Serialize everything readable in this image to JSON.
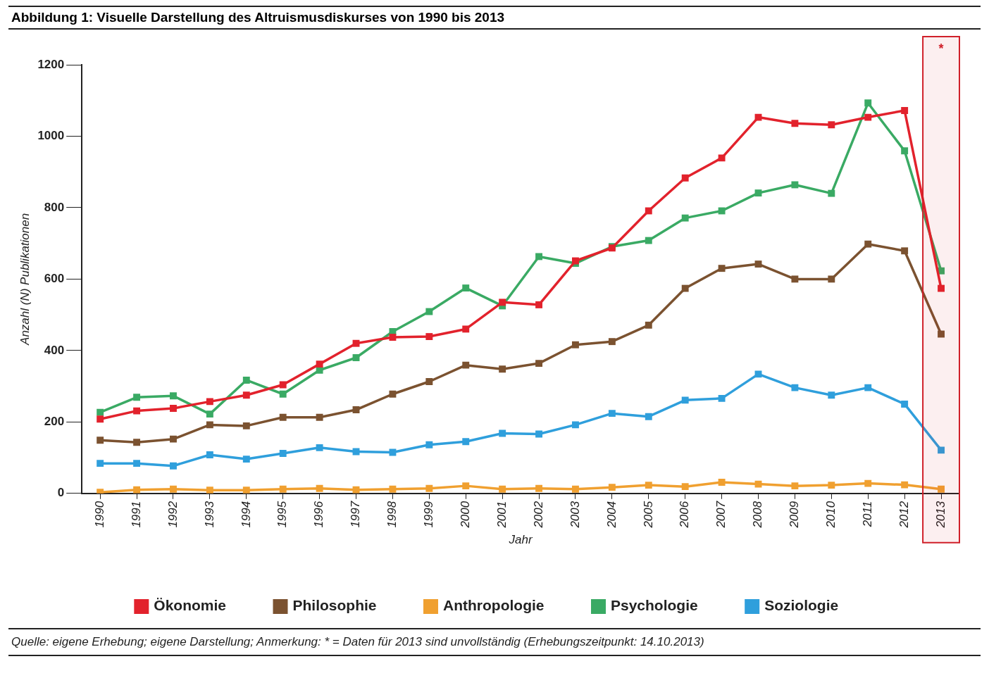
{
  "chart_data": {
    "type": "line",
    "title": "Abbildung 1: Visuelle Darstellung des Altruismusdiskurses von 1990 bis 2013",
    "xlabel": "Jahr",
    "ylabel": "Anzahl (N) Publikationen",
    "categories": [
      "1990",
      "1991",
      "1992",
      "1993",
      "1994",
      "1995",
      "1996",
      "1997",
      "1998",
      "1999",
      "2000",
      "2001",
      "2002",
      "2003",
      "2004",
      "2005",
      "2006",
      "2007",
      "2008",
      "2009",
      "2010",
      "2011",
      "2012",
      "2013"
    ],
    "series": [
      {
        "name": "Ökonomie",
        "color": "#e2222c",
        "values": [
          208,
          231,
          238,
          257,
          275,
          304,
          362,
          420,
          437,
          439,
          460,
          535,
          528,
          651,
          687,
          791,
          883,
          939,
          1053,
          1036,
          1032,
          1053,
          1072,
          574
        ]
      },
      {
        "name": "Philosophie",
        "color": "#7b5230",
        "values": [
          149,
          143,
          152,
          192,
          189,
          213,
          213,
          234,
          278,
          313,
          359,
          348,
          364,
          416,
          425,
          471,
          574,
          630,
          642,
          600,
          600,
          698,
          679,
          446
        ]
      },
      {
        "name": "Anthropologie",
        "color": "#f0a030",
        "values": [
          3,
          10,
          12,
          9,
          9,
          12,
          14,
          10,
          12,
          14,
          21,
          12,
          14,
          12,
          17,
          23,
          19,
          31,
          26,
          21,
          23,
          28,
          24,
          12
        ]
      },
      {
        "name": "Psychologie",
        "color": "#3aaa64",
        "values": [
          227,
          269,
          273,
          222,
          317,
          278,
          345,
          380,
          453,
          509,
          575,
          525,
          663,
          644,
          691,
          708,
          771,
          791,
          841,
          864,
          840,
          1093,
          959,
          623
        ]
      },
      {
        "name": "Soziologie",
        "color": "#2f9fdc",
        "values": [
          84,
          84,
          77,
          108,
          96,
          112,
          128,
          117,
          115,
          136,
          145,
          168,
          166,
          192,
          224,
          215,
          261,
          266,
          334,
          296,
          275,
          296,
          250,
          121
        ]
      }
    ],
    "ylim": [
      0,
      1200
    ],
    "yticks": [
      0,
      200,
      400,
      600,
      800,
      1000,
      1200
    ],
    "marker": "square",
    "legend": "bottom",
    "bands": [
      {
        "axis": "x",
        "from": "2013",
        "to": "2013",
        "label": "*",
        "color": "#d0202a"
      }
    ],
    "annotations": [
      "Quelle: eigene Erhebung; eigene Darstellung; Anmerkung: * = Daten für 2013 sind unvollständig (Erhebungszeitpunkt: 14.10.2013)"
    ]
  }
}
